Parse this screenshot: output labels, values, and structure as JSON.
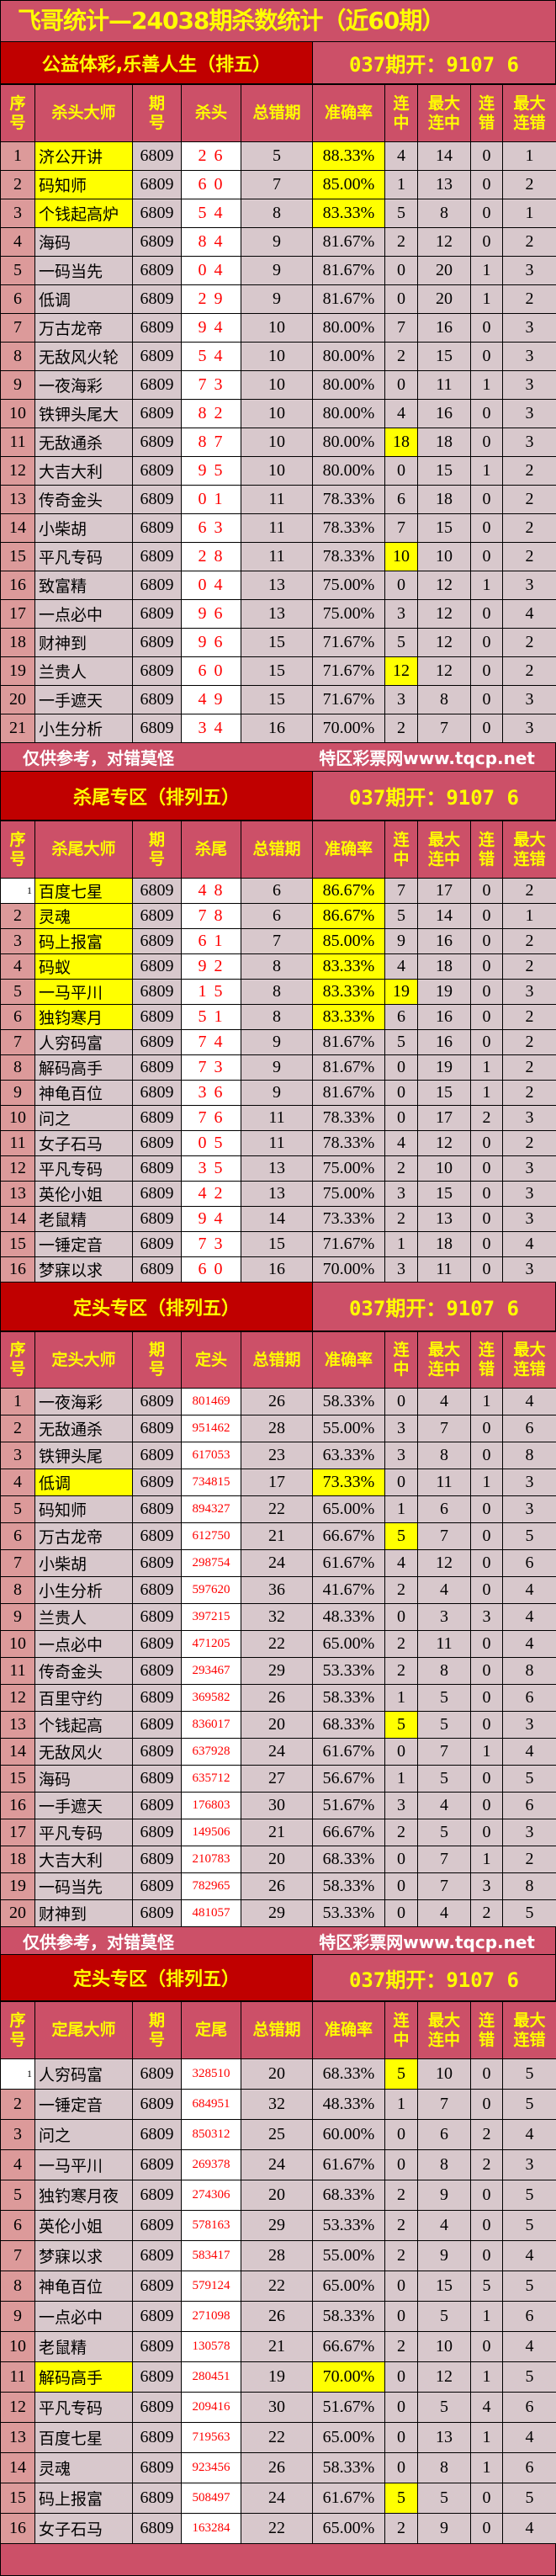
{
  "title": "飞哥统计—24038期杀数统计（近60期）",
  "draw_result": "037期开：9107 6",
  "footer": {
    "left": "仅供参考，对错莫怪",
    "right": "特区彩票网www.tqcp.net"
  },
  "colors": {
    "header_bg": "#cc5068",
    "section_bg": "#c00000",
    "header_text": "#ffff00",
    "highlight": "#ffff00",
    "kill_text": "#ff0000"
  },
  "sections": [
    {
      "label": "公益体彩,乐善人生（排五）",
      "columns": [
        "序\n号",
        "杀头大师",
        "期\n号",
        "杀头",
        "总错期",
        "准确率",
        "连\n中",
        "最大\n连中",
        "连\n错",
        "最大\n连错"
      ],
      "rows": [
        {
          "c": [
            "1",
            "济公开讲",
            "6809",
            "2 6",
            "5",
            "88.33%",
            "4",
            "14",
            "0",
            "1"
          ],
          "hl": [
            1,
            5
          ]
        },
        {
          "c": [
            "2",
            "码知师",
            "6809",
            "6 0",
            "7",
            "85.00%",
            "1",
            "13",
            "0",
            "2"
          ],
          "hl": [
            1,
            5
          ]
        },
        {
          "c": [
            "3",
            "个钱起高炉",
            "6809",
            "5 4",
            "8",
            "83.33%",
            "5",
            "8",
            "0",
            "1"
          ],
          "hl": [
            1,
            5
          ]
        },
        {
          "c": [
            "4",
            "海码",
            "6809",
            "8 4",
            "9",
            "81.67%",
            "2",
            "12",
            "0",
            "2"
          ]
        },
        {
          "c": [
            "5",
            "一码当先",
            "6809",
            "0 4",
            "9",
            "81.67%",
            "0",
            "20",
            "1",
            "3"
          ]
        },
        {
          "c": [
            "6",
            "低调",
            "6809",
            "2 9",
            "9",
            "81.67%",
            "0",
            "20",
            "1",
            "2"
          ]
        },
        {
          "c": [
            "7",
            "万古龙帝",
            "6809",
            "9 4",
            "10",
            "80.00%",
            "7",
            "16",
            "0",
            "3"
          ]
        },
        {
          "c": [
            "8",
            "无敌风火轮",
            "6809",
            "5 4",
            "10",
            "80.00%",
            "2",
            "15",
            "0",
            "3"
          ]
        },
        {
          "c": [
            "9",
            "一夜海彩",
            "6809",
            "7 3",
            "10",
            "80.00%",
            "0",
            "11",
            "1",
            "3"
          ]
        },
        {
          "c": [
            "10",
            "铁钾头尾大",
            "6809",
            "8 2",
            "10",
            "80.00%",
            "4",
            "16",
            "0",
            "3"
          ]
        },
        {
          "c": [
            "11",
            "无敌通杀",
            "6809",
            "8 7",
            "10",
            "80.00%",
            "18",
            "18",
            "0",
            "3"
          ],
          "hl": [
            6
          ]
        },
        {
          "c": [
            "12",
            "大吉大利",
            "6809",
            "9 5",
            "10",
            "80.00%",
            "0",
            "15",
            "1",
            "2"
          ]
        },
        {
          "c": [
            "13",
            "传奇金头",
            "6809",
            "0 1",
            "11",
            "78.33%",
            "6",
            "18",
            "0",
            "2"
          ]
        },
        {
          "c": [
            "14",
            "小柴胡",
            "6809",
            "6 3",
            "11",
            "78.33%",
            "7",
            "15",
            "0",
            "2"
          ]
        },
        {
          "c": [
            "15",
            "平凡专码",
            "6809",
            "2 8",
            "11",
            "78.33%",
            "10",
            "10",
            "0",
            "2"
          ],
          "hl": [
            6
          ]
        },
        {
          "c": [
            "16",
            "致富精",
            "6809",
            "0 4",
            "13",
            "75.00%",
            "0",
            "12",
            "1",
            "3"
          ]
        },
        {
          "c": [
            "17",
            "一点必中",
            "6809",
            "9 6",
            "13",
            "75.00%",
            "3",
            "12",
            "0",
            "4"
          ]
        },
        {
          "c": [
            "18",
            "财神到",
            "6809",
            "9 6",
            "15",
            "71.67%",
            "5",
            "12",
            "0",
            "2"
          ]
        },
        {
          "c": [
            "19",
            "兰贵人",
            "6809",
            "6 0",
            "15",
            "71.67%",
            "12",
            "12",
            "0",
            "2"
          ],
          "hl": [
            6
          ]
        },
        {
          "c": [
            "20",
            "一手遮天",
            "6809",
            "4 9",
            "15",
            "71.67%",
            "3",
            "8",
            "0",
            "3"
          ]
        },
        {
          "c": [
            "21",
            "小生分析",
            "6809",
            "3 4",
            "16",
            "70.00%",
            "2",
            "7",
            "0",
            "3"
          ]
        }
      ],
      "footer": true
    },
    {
      "label": "杀尾专区（排列五）",
      "columns": [
        "序\n号",
        "杀尾大师",
        "期\n号",
        "杀尾",
        "总错期",
        "准确率",
        "连\n中",
        "最大\n连中",
        "连\n错",
        "最大\n连错"
      ],
      "rows": [
        {
          "c": [
            "1",
            "百度七星",
            "6809",
            "4 8",
            "6",
            "86.67%",
            "7",
            "17",
            "0",
            "2"
          ],
          "hl": [
            1,
            5
          ],
          "white_seq": true
        },
        {
          "c": [
            "2",
            "灵魂",
            "6809",
            "7 8",
            "6",
            "86.67%",
            "5",
            "14",
            "0",
            "1"
          ],
          "hl": [
            1,
            5
          ]
        },
        {
          "c": [
            "3",
            "码上报富",
            "6809",
            "6 1",
            "7",
            "85.00%",
            "9",
            "16",
            "0",
            "2"
          ],
          "hl": [
            1,
            5
          ]
        },
        {
          "c": [
            "4",
            "码蚁",
            "6809",
            "9 2",
            "8",
            "83.33%",
            "4",
            "18",
            "0",
            "2"
          ],
          "hl": [
            1,
            5
          ]
        },
        {
          "c": [
            "5",
            "一马平川",
            "6809",
            "1 5",
            "8",
            "83.33%",
            "19",
            "19",
            "0",
            "3"
          ],
          "hl": [
            1,
            5,
            6
          ]
        },
        {
          "c": [
            "6",
            "独钧寒月",
            "6809",
            "5 1",
            "8",
            "83.33%",
            "6",
            "16",
            "0",
            "2"
          ],
          "hl": [
            1,
            5
          ]
        },
        {
          "c": [
            "7",
            "人穷码富",
            "6809",
            "7 4",
            "9",
            "81.67%",
            "5",
            "16",
            "0",
            "2"
          ]
        },
        {
          "c": [
            "8",
            "解码高手",
            "6809",
            "7 3",
            "9",
            "81.67%",
            "0",
            "19",
            "1",
            "2"
          ]
        },
        {
          "c": [
            "9",
            "神龟百位",
            "6809",
            "3 6",
            "9",
            "81.67%",
            "0",
            "15",
            "1",
            "2"
          ]
        },
        {
          "c": [
            "10",
            "问之",
            "6809",
            "7 6",
            "11",
            "78.33%",
            "0",
            "17",
            "2",
            "3"
          ]
        },
        {
          "c": [
            "11",
            "女子石马",
            "6809",
            "0 5",
            "11",
            "78.33%",
            "4",
            "12",
            "0",
            "2"
          ]
        },
        {
          "c": [
            "12",
            "平凡专码",
            "6809",
            "3 5",
            "13",
            "75.00%",
            "2",
            "10",
            "0",
            "3"
          ]
        },
        {
          "c": [
            "13",
            "英伦小姐",
            "6809",
            "4 2",
            "13",
            "75.00%",
            "3",
            "15",
            "0",
            "3"
          ]
        },
        {
          "c": [
            "14",
            "老鼠精",
            "6809",
            "9 4",
            "14",
            "73.33%",
            "2",
            "13",
            "0",
            "3"
          ]
        },
        {
          "c": [
            "15",
            "一锤定音",
            "6809",
            "7 3",
            "15",
            "71.67%",
            "1",
            "18",
            "0",
            "4"
          ]
        },
        {
          "c": [
            "16",
            "梦寐以求",
            "6809",
            "6 0",
            "16",
            "70.00%",
            "3",
            "11",
            "0",
            "3"
          ]
        }
      ]
    },
    {
      "label": "定头专区（排列五）",
      "columns": [
        "序\n号",
        "定头大师",
        "期\n号",
        "定头",
        "总错期",
        "准确率",
        "连\n中",
        "最大\n连中",
        "连\n错",
        "最大\n连错"
      ],
      "rows": [
        {
          "c": [
            "1",
            "一夜海彩",
            "6809",
            "801469",
            "26",
            "58.33%",
            "0",
            "4",
            "1",
            "4"
          ]
        },
        {
          "c": [
            "2",
            "无敌通杀",
            "6809",
            "951462",
            "28",
            "55.00%",
            "3",
            "7",
            "0",
            "6"
          ]
        },
        {
          "c": [
            "3",
            "铁钾头尾",
            "6809",
            "617053",
            "23",
            "63.33%",
            "3",
            "8",
            "0",
            "8"
          ]
        },
        {
          "c": [
            "4",
            "低调",
            "6809",
            "734815",
            "17",
            "73.33%",
            "0",
            "11",
            "1",
            "3"
          ],
          "hl": [
            1,
            5
          ]
        },
        {
          "c": [
            "5",
            "码知师",
            "6809",
            "894327",
            "22",
            "65.00%",
            "1",
            "6",
            "0",
            "3"
          ]
        },
        {
          "c": [
            "6",
            "万古龙帝",
            "6809",
            "612750",
            "21",
            "66.67%",
            "5",
            "7",
            "0",
            "5"
          ],
          "hl": [
            6
          ]
        },
        {
          "c": [
            "7",
            "小柴胡",
            "6809",
            "298754",
            "24",
            "61.67%",
            "4",
            "12",
            "0",
            "6"
          ]
        },
        {
          "c": [
            "8",
            "小生分析",
            "6809",
            "597620",
            "36",
            "41.67%",
            "2",
            "4",
            "0",
            "4"
          ]
        },
        {
          "c": [
            "9",
            "兰贵人",
            "6809",
            "397215",
            "32",
            "48.33%",
            "0",
            "3",
            "3",
            "4"
          ]
        },
        {
          "c": [
            "10",
            "一点必中",
            "6809",
            "471205",
            "22",
            "65.00%",
            "2",
            "11",
            "0",
            "4"
          ]
        },
        {
          "c": [
            "11",
            "传奇金头",
            "6809",
            "293467",
            "29",
            "53.33%",
            "2",
            "8",
            "0",
            "8"
          ]
        },
        {
          "c": [
            "12",
            "百里守约",
            "6809",
            "369582",
            "26",
            "58.33%",
            "1",
            "5",
            "0",
            "6"
          ]
        },
        {
          "c": [
            "13",
            "个钱起高",
            "6809",
            "836017",
            "20",
            "68.33%",
            "5",
            "5",
            "0",
            "3"
          ],
          "hl": [
            6
          ]
        },
        {
          "c": [
            "14",
            "无敌风火",
            "6809",
            "637928",
            "24",
            "61.67%",
            "0",
            "7",
            "1",
            "4"
          ]
        },
        {
          "c": [
            "15",
            "海码",
            "6809",
            "635712",
            "27",
            "56.67%",
            "1",
            "5",
            "0",
            "5"
          ]
        },
        {
          "c": [
            "16",
            "一手遮天",
            "6809",
            "176803",
            "30",
            "51.67%",
            "3",
            "4",
            "0",
            "6"
          ]
        },
        {
          "c": [
            "17",
            "平凡专码",
            "6809",
            "149506",
            "21",
            "66.67%",
            "2",
            "5",
            "0",
            "3"
          ]
        },
        {
          "c": [
            "18",
            "大吉大利",
            "6809",
            "210783",
            "20",
            "68.33%",
            "0",
            "7",
            "1",
            "2"
          ]
        },
        {
          "c": [
            "19",
            "一码当先",
            "6809",
            "782965",
            "26",
            "58.33%",
            "0",
            "7",
            "3",
            "8"
          ]
        },
        {
          "c": [
            "20",
            "财神到",
            "6809",
            "481057",
            "29",
            "53.33%",
            "0",
            "4",
            "2",
            "5"
          ]
        }
      ],
      "footer": true
    },
    {
      "label": "定头专区（排列五）",
      "columns": [
        "序\n号",
        "定尾大师",
        "期\n号",
        "定尾",
        "总错期",
        "准确率",
        "连\n中",
        "最大\n连中",
        "连\n错",
        "最大\n连错"
      ],
      "rows": [
        {
          "c": [
            "1",
            "人穷码富",
            "6809",
            "328510",
            "20",
            "68.33%",
            "5",
            "10",
            "0",
            "5"
          ],
          "hl": [
            6
          ],
          "white_seq": true
        },
        {
          "c": [
            "2",
            "一锤定音",
            "6809",
            "684951",
            "32",
            "48.33%",
            "1",
            "7",
            "0",
            "5"
          ]
        },
        {
          "c": [
            "3",
            "问之",
            "6809",
            "850312",
            "25",
            "60.00%",
            "0",
            "6",
            "2",
            "4"
          ]
        },
        {
          "c": [
            "4",
            "一马平川",
            "6809",
            "269378",
            "24",
            "61.67%",
            "0",
            "8",
            "2",
            "3"
          ]
        },
        {
          "c": [
            "5",
            "独钓寒月夜",
            "6809",
            "274306",
            "20",
            "68.33%",
            "2",
            "9",
            "0",
            "5"
          ]
        },
        {
          "c": [
            "6",
            "英伦小姐",
            "6809",
            "578163",
            "29",
            "53.33%",
            "2",
            "4",
            "0",
            "5"
          ]
        },
        {
          "c": [
            "7",
            "梦寐以求",
            "6809",
            "583417",
            "28",
            "55.00%",
            "2",
            "9",
            "0",
            "4"
          ]
        },
        {
          "c": [
            "8",
            "神龟百位",
            "6809",
            "579124",
            "22",
            "65.00%",
            "0",
            "15",
            "5",
            "5"
          ]
        },
        {
          "c": [
            "9",
            "一点必中",
            "6809",
            "271098",
            "26",
            "58.33%",
            "0",
            "5",
            "1",
            "6"
          ]
        },
        {
          "c": [
            "10",
            "老鼠精",
            "6809",
            "130578",
            "21",
            "66.67%",
            "2",
            "10",
            "0",
            "4"
          ]
        },
        {
          "c": [
            "11",
            "解码高手",
            "6809",
            "280451",
            "19",
            "70.00%",
            "0",
            "12",
            "1",
            "5"
          ],
          "hl": [
            1,
            5
          ]
        },
        {
          "c": [
            "12",
            "平凡专码",
            "6809",
            "209416",
            "30",
            "51.67%",
            "0",
            "5",
            "4",
            "6"
          ]
        },
        {
          "c": [
            "13",
            "百度七星",
            "6809",
            "719563",
            "22",
            "65.00%",
            "0",
            "13",
            "1",
            "4"
          ]
        },
        {
          "c": [
            "14",
            "灵魂",
            "6809",
            "923456",
            "26",
            "58.33%",
            "0",
            "8",
            "1",
            "6"
          ]
        },
        {
          "c": [
            "15",
            "码上报富",
            "6809",
            "508497",
            "24",
            "61.67%",
            "5",
            "5",
            "0",
            "5"
          ],
          "hl": [
            6
          ]
        },
        {
          "c": [
            "16",
            "女子石马",
            "6809",
            "163284",
            "22",
            "65.00%",
            "2",
            "9",
            "0",
            "4"
          ]
        }
      ]
    }
  ]
}
